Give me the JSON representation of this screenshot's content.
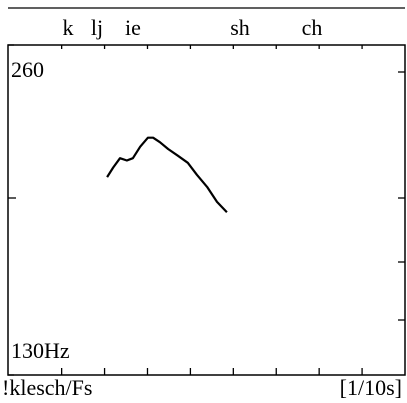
{
  "chart_data": {
    "type": "line",
    "title": "!klesch/Fs",
    "x_label": "[1/10s]",
    "segments": [
      "k",
      "lj",
      "ie",
      "sh",
      "ch"
    ],
    "x": [
      2.06,
      2.2,
      2.36,
      2.52,
      2.66,
      2.83,
      3.01,
      3.13,
      3.29,
      3.48,
      3.71,
      3.94,
      4.15,
      4.39,
      4.62,
      4.85
    ],
    "values": [
      197,
      201,
      205,
      204,
      205,
      210,
      214,
      214,
      212,
      209,
      206,
      203,
      198,
      193,
      187,
      183
    ],
    "color": "#000000",
    "xlim": [
      -0.25,
      9
    ],
    "xticks": [
      1,
      2,
      3,
      4,
      5,
      6,
      7,
      8
    ],
    "ylim": [
      130,
      260
    ],
    "yticks": [
      260,
      {
        "value": 130,
        "label": "130Hz"
      }
    ],
    "log_y": true
  }
}
